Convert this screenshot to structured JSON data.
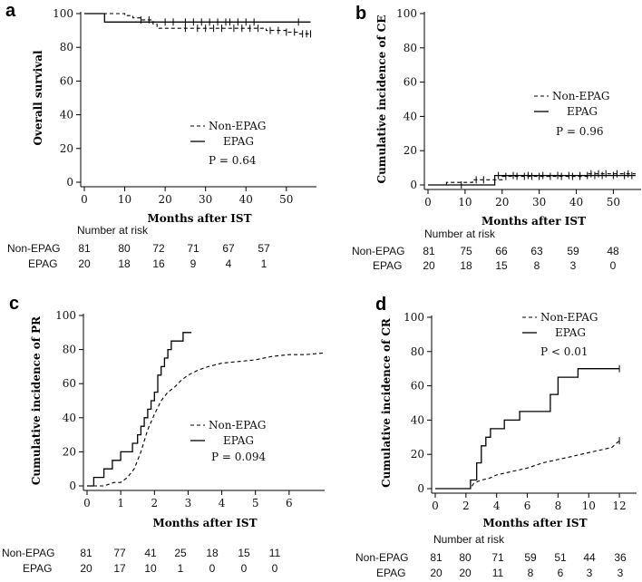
{
  "chart_data": [
    {
      "type": "line",
      "panel": "a",
      "ylabel": "Overall survival",
      "xlabel": "Months after IST",
      "xlim": [
        0,
        57
      ],
      "ylim": [
        0,
        100
      ],
      "xticks": [
        0,
        10,
        20,
        30,
        40,
        50
      ],
      "yticks": [
        0,
        20,
        40,
        60,
        80,
        100
      ],
      "legend": {
        "position": "center-right",
        "entries": [
          {
            "label": "Non-EPAG",
            "style": "dashed"
          },
          {
            "label": "EPAG",
            "style": "solid"
          }
        ],
        "pvalue": "P = 0.64"
      },
      "series": [
        {
          "name": "EPAG",
          "style": "solid",
          "x": [
            0,
            5,
            5,
            56
          ],
          "y": [
            100,
            100,
            95,
            95
          ],
          "censor_x": [
            20,
            22,
            25,
            27,
            29,
            31,
            33,
            35,
            36,
            38,
            40,
            42,
            53
          ]
        },
        {
          "name": "Non-EPAG",
          "style": "dashed",
          "x": [
            0,
            10,
            10,
            12,
            12,
            14,
            14,
            17,
            17,
            18,
            18,
            45,
            45,
            50,
            50,
            53,
            53,
            56
          ],
          "y": [
            100,
            100,
            98.8,
            98.8,
            97.5,
            97.5,
            96.3,
            96.3,
            93.8,
            93.8,
            91.3,
            91.3,
            90,
            90,
            89,
            89,
            88,
            88
          ],
          "censor_x": [
            14,
            16,
            25,
            28,
            30,
            32,
            34,
            37,
            39,
            41,
            43,
            46,
            48,
            50,
            52,
            54,
            55,
            56
          ]
        }
      ],
      "risk_table": {
        "title": "Number at risk",
        "rows": [
          {
            "label": "Non-EPAG",
            "values": [
              "81",
              "80",
              "72",
              "71",
              "67",
              "57"
            ]
          },
          {
            "label": "EPAG",
            "values": [
              "20",
              "18",
              "16",
              "9",
              "4",
              "1"
            ]
          }
        ]
      }
    },
    {
      "type": "line",
      "panel": "b",
      "ylabel": "Cumulative incidence of CE",
      "xlabel": "Months after IST",
      "xlim": [
        0,
        57
      ],
      "ylim": [
        0,
        100
      ],
      "xticks": [
        0,
        10,
        20,
        30,
        40,
        50
      ],
      "yticks": [
        0,
        20,
        40,
        60,
        80,
        100
      ],
      "legend": {
        "position": "center-right",
        "entries": [
          {
            "label": "Non-EPAG",
            "style": "dashed"
          },
          {
            "label": "EPAG",
            "style": "solid"
          }
        ],
        "pvalue": "P = 0.96"
      },
      "series": [
        {
          "name": "EPAG",
          "style": "solid",
          "x": [
            0,
            18,
            18,
            56
          ],
          "y": [
            0,
            0,
            5.5,
            5.5
          ],
          "censor_x": [
            9,
            19,
            23,
            27,
            31,
            35,
            38,
            41,
            43,
            45,
            47,
            50,
            53,
            55
          ]
        },
        {
          "name": "Non-EPAG",
          "style": "dashed",
          "x": [
            0,
            5,
            5,
            12,
            12,
            20,
            20,
            43,
            43,
            56
          ],
          "y": [
            0,
            0,
            1.5,
            1.5,
            3,
            3,
            5,
            5,
            6.5,
            6.5
          ],
          "censor_x": [
            13,
            15,
            21,
            24,
            26,
            28,
            30,
            33,
            36,
            39,
            41,
            44,
            46,
            48,
            51,
            54
          ]
        }
      ],
      "risk_table": {
        "title": "Number at risk",
        "rows": [
          {
            "label": "Non-EPAG",
            "values": [
              "81",
              "75",
              "66",
              "63",
              "59",
              "48"
            ]
          },
          {
            "label": "EPAG",
            "values": [
              "20",
              "18",
              "15",
              "8",
              "3",
              "0"
            ]
          }
        ]
      }
    },
    {
      "type": "line",
      "panel": "c",
      "ylabel": "Cumulative incidence of PR",
      "xlabel": "Months after IST",
      "xlim": [
        0,
        7
      ],
      "ylim": [
        0,
        100
      ],
      "xticks": [
        0,
        1,
        2,
        3,
        4,
        5,
        6
      ],
      "yticks": [
        0,
        20,
        40,
        60,
        80,
        100
      ],
      "legend": {
        "position": "bottom-right",
        "entries": [
          {
            "label": "Non-EPAG",
            "style": "dashed"
          },
          {
            "label": "EPAG",
            "style": "solid"
          }
        ],
        "pvalue": "P = 0.094"
      },
      "series": [
        {
          "name": "EPAG",
          "style": "solid",
          "x": [
            0,
            0.2,
            0.2,
            0.5,
            0.5,
            0.75,
            0.75,
            1.0,
            1.0,
            1.35,
            1.35,
            1.5,
            1.5,
            1.6,
            1.6,
            1.7,
            1.7,
            1.8,
            1.8,
            1.9,
            1.9,
            2.0,
            2.0,
            2.1,
            2.1,
            2.2,
            2.2,
            2.3,
            2.3,
            2.4,
            2.4,
            2.5,
            2.5,
            2.85,
            2.85,
            3.1
          ],
          "y": [
            0,
            0,
            5,
            5,
            10,
            10,
            15,
            15,
            20,
            20,
            25,
            25,
            30,
            30,
            35,
            35,
            40,
            40,
            45,
            45,
            50,
            50,
            55,
            55,
            65,
            65,
            70,
            70,
            75,
            75,
            80,
            80,
            85,
            85,
            90,
            90
          ]
        },
        {
          "name": "Non-EPAG",
          "style": "dashed",
          "x": [
            0,
            0.5,
            0.8,
            1.0,
            1.2,
            1.4,
            1.6,
            1.8,
            2.0,
            2.2,
            2.4,
            2.6,
            2.8,
            3.0,
            3.3,
            3.6,
            4.0,
            4.5,
            5.0,
            5.5,
            6.0,
            6.5,
            7.0
          ],
          "y": [
            0,
            0,
            2,
            2,
            5,
            10,
            20,
            33,
            42,
            50,
            55,
            58,
            62,
            65,
            68,
            70,
            72,
            73,
            74,
            76,
            77,
            77,
            78
          ]
        }
      ],
      "risk_table": {
        "title": "",
        "rows": [
          {
            "label": "Non-EPAG",
            "values": [
              "81",
              "77",
              "41",
              "25",
              "18",
              "15",
              "11"
            ]
          },
          {
            "label": "EPAG",
            "values": [
              "20",
              "17",
              "10",
              "1",
              "0",
              "0",
              "0"
            ]
          }
        ]
      }
    },
    {
      "type": "line",
      "panel": "d",
      "ylabel": "Cumulative incidence of CR",
      "xlabel": "Months after IST",
      "xlim": [
        0,
        13
      ],
      "ylim": [
        0,
        100
      ],
      "xticks": [
        0,
        2,
        4,
        6,
        8,
        10,
        12
      ],
      "yticks": [
        0,
        20,
        40,
        60,
        80,
        100
      ],
      "legend": {
        "position": "top-right",
        "entries": [
          {
            "label": "Non-EPAG",
            "style": "dashed"
          },
          {
            "label": "EPAG",
            "style": "solid"
          }
        ],
        "pvalue": "P < 0.01"
      },
      "series": [
        {
          "name": "EPAG",
          "style": "solid",
          "x": [
            0,
            2.3,
            2.3,
            2.7,
            2.7,
            3.0,
            3.0,
            3.3,
            3.3,
            3.6,
            3.6,
            4.5,
            4.5,
            5.5,
            5.5,
            7.5,
            7.5,
            8.0,
            8.0,
            9.3,
            9.3,
            12
          ],
          "y": [
            0,
            0,
            5,
            5,
            15,
            15,
            25,
            25,
            30,
            30,
            35,
            35,
            40,
            40,
            45,
            45,
            55,
            55,
            65,
            65,
            70,
            70
          ],
          "censor_x": [
            12
          ]
        },
        {
          "name": "Non-EPAG",
          "style": "dashed",
          "x": [
            0,
            2.3,
            2.5,
            3.0,
            3.5,
            4.0,
            5.0,
            6.0,
            7.0,
            8.0,
            9.0,
            10.0,
            11.0,
            11.5,
            12.0
          ],
          "y": [
            0,
            0,
            3,
            5,
            6,
            8,
            10,
            12,
            15,
            17,
            19,
            21,
            23,
            24,
            28
          ],
          "censor_x": [
            12
          ]
        }
      ],
      "risk_table": {
        "title": "Number at risk",
        "rows": [
          {
            "label": "Non-EPAG",
            "values": [
              "81",
              "80",
              "71",
              "59",
              "51",
              "44",
              "36"
            ]
          },
          {
            "label": "EPAG",
            "values": [
              "20",
              "20",
              "11",
              "8",
              "6",
              "3",
              "3"
            ]
          }
        ]
      }
    }
  ]
}
